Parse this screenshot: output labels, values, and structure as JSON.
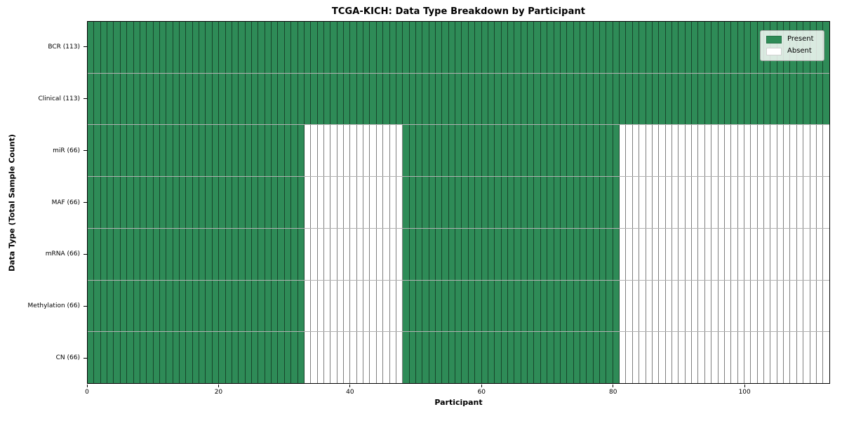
{
  "colors": {
    "present": "#2e8b57",
    "absent": "#ffffff",
    "cell_edge": "rgba(0,0,0,0.5)",
    "row_edge": "rgba(0,0,0,0.3)",
    "spine": "#000000"
  },
  "legend": {
    "present_label": "Present",
    "absent_label": "Absent"
  },
  "chart_data": {
    "type": "heatmap",
    "title": "TCGA-KICH: Data Type Breakdown by Participant",
    "xlabel": "Participant",
    "ylabel": "Data Type (Total Sample Count)",
    "x_range": [
      0,
      113
    ],
    "n_participants": 113,
    "x_ticks": [
      0,
      20,
      40,
      60,
      80,
      100
    ],
    "grid": false,
    "legend_position": "upper right",
    "legend_entries": [
      {
        "label": "Present",
        "color": "#2e8b57"
      },
      {
        "label": "Absent",
        "color": "#ffffff"
      }
    ],
    "rows": [
      {
        "label": "BCR (113)",
        "total_samples": 113,
        "present_ranges": [
          [
            0,
            113
          ]
        ]
      },
      {
        "label": "Clinical (113)",
        "total_samples": 113,
        "present_ranges": [
          [
            0,
            113
          ]
        ]
      },
      {
        "label": "miR (66)",
        "total_samples": 66,
        "present_ranges": [
          [
            0,
            33
          ],
          [
            48,
            81
          ]
        ]
      },
      {
        "label": "MAF (66)",
        "total_samples": 66,
        "present_ranges": [
          [
            0,
            33
          ],
          [
            48,
            81
          ]
        ]
      },
      {
        "label": "mRNA (66)",
        "total_samples": 66,
        "present_ranges": [
          [
            0,
            33
          ],
          [
            48,
            81
          ]
        ]
      },
      {
        "label": "Methylation (66)",
        "total_samples": 66,
        "present_ranges": [
          [
            0,
            33
          ],
          [
            48,
            81
          ]
        ]
      },
      {
        "label": "CN (66)",
        "total_samples": 66,
        "present_ranges": [
          [
            0,
            33
          ],
          [
            48,
            81
          ]
        ]
      }
    ]
  }
}
